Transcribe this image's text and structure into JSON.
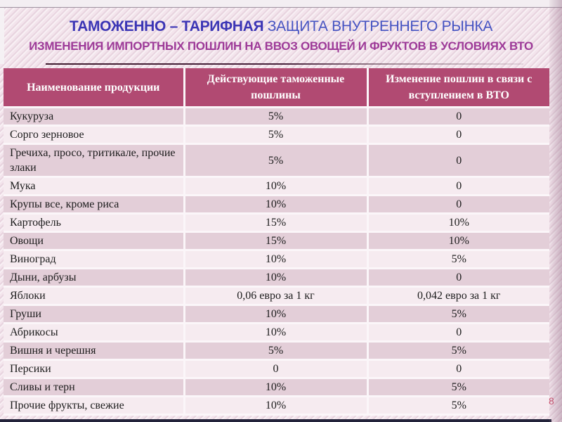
{
  "slide": {
    "title_bold": "ТАМОЖЕННО – ТАРИФНАЯ",
    "title_rest": " ЗАЩИТА ВНУТРЕННЕГО РЫНКА",
    "subtitle": "ИЗМЕНЕНИЯ ИМПОРТНЫХ ПОШЛИН НА ВВОЗ ОВОЩЕЙ И ФРУКТОВ В УСЛОВИЯХ ВТО",
    "page_number": "8"
  },
  "table": {
    "columns": [
      "Наименование продукции",
      "Действующие таможенные пошлины",
      "Изменение пошлин в связи с вступлением в ВТО"
    ],
    "rows": [
      [
        "Кукуруза",
        "5%",
        "0"
      ],
      [
        "Сорго зерновое",
        "5%",
        "0"
      ],
      [
        "Гречиха, просо, тритикале, прочие злаки",
        "5%",
        "0"
      ],
      [
        "Мука",
        "10%",
        "0"
      ],
      [
        "Крупы все, кроме риса",
        "10%",
        "0"
      ],
      [
        "Картофель",
        "15%",
        "10%"
      ],
      [
        "Овощи",
        "15%",
        "10%"
      ],
      [
        "Виноград",
        "10%",
        "5%"
      ],
      [
        "Дыни, арбузы",
        "10%",
        "0"
      ],
      [
        "Яблоки",
        "0,06 евро за 1 кг",
        "0,042 евро за 1 кг"
      ],
      [
        "Груши",
        "10%",
        "5%"
      ],
      [
        "Абрикосы",
        "10%",
        "0"
      ],
      [
        "Вишня и черешня",
        "5%",
        "5%"
      ],
      [
        "Персики",
        "0",
        "0"
      ],
      [
        "Сливы и терн",
        "10%",
        "5%"
      ],
      [
        "Прочие фрукты, свежие",
        "10%",
        "5%"
      ]
    ]
  },
  "colors": {
    "header_bg": "#b14a72",
    "row_dark": "#e3ced8",
    "row_light": "#f6ebf0",
    "title_blue_bold": "#3b35b5",
    "title_blue": "#4553c2",
    "subtitle_magenta": "#9d3a98",
    "page_number": "#cb4b68",
    "slide_bg": "#f3e4ec"
  }
}
